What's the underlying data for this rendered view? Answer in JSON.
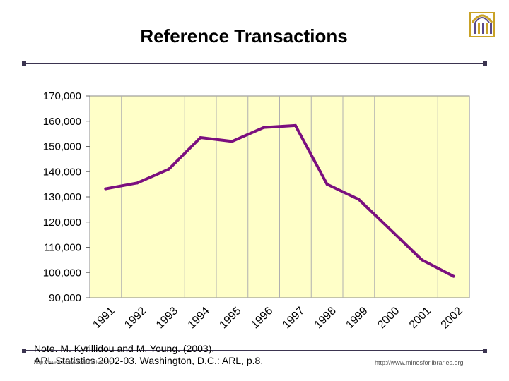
{
  "slide": {
    "title": "Reference Transactions",
    "note_line1": "Note. M. Kyrillidou and M. Young. (2003).",
    "note_line2": "ARL Statistics 2002-03. Washington, D.C.: ARL, p.8.",
    "footer_left": "http://www.minesforlibraries.org",
    "footer_right": "http://www.minesforlibraries.org",
    "accent_color": "#3b3450",
    "logo_icon": "arched-library-logo-icon"
  },
  "chart_data": {
    "type": "line",
    "title": "",
    "xlabel": "",
    "ylabel": "",
    "categories": [
      "1991",
      "1992",
      "1993",
      "1994",
      "1995",
      "1996",
      "1997",
      "1998",
      "1999",
      "2000",
      "2001",
      "2002"
    ],
    "series": [
      {
        "values": [
          133200,
          135500,
          141000,
          153500,
          152000,
          157500,
          158300,
          135000,
          129000,
          117000,
          105000,
          98500
        ]
      }
    ],
    "y_ticks": [
      "90,000",
      "100,000",
      "110,000",
      "120,000",
      "130,000",
      "140,000",
      "150,000",
      "160,000",
      "170,000"
    ],
    "ylim": [
      90000,
      170000
    ],
    "grid": "vertical",
    "legend": "none",
    "plot_background": "#ffffc8",
    "line_color": "#7b0f7f"
  }
}
